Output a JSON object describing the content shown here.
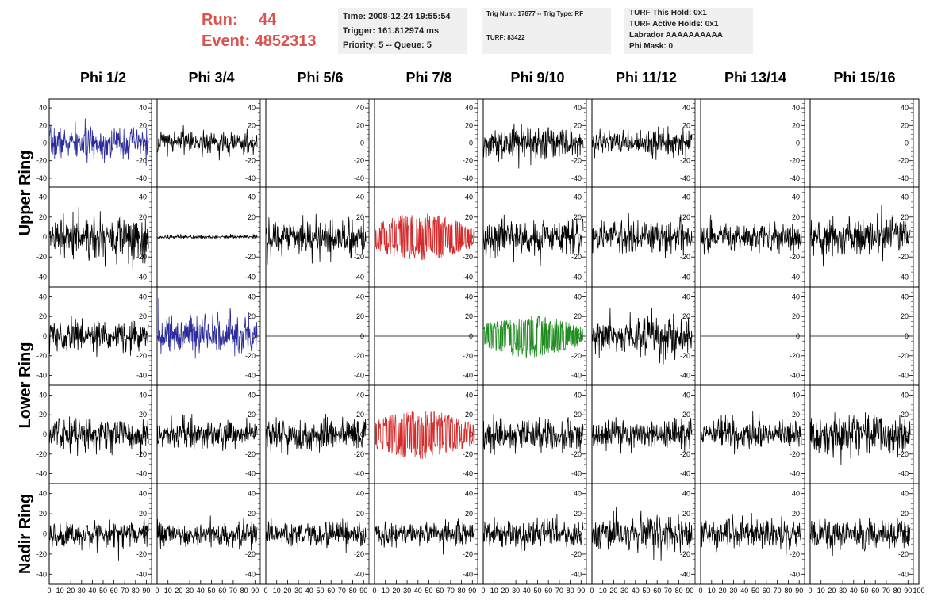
{
  "header": {
    "run_label": "Run:",
    "run_value": "44",
    "event_label": "Event:",
    "event_value": "4852313",
    "time_line": "Time: 2008-12-24 19:55:54",
    "trigger_line": "Trigger: 161.812974 ms",
    "priority_line": "Priority: 5 -- Queue: 5",
    "trig_num_line": "Trig Num: 17877 -- Trig Type: RF",
    "turf_line": "TURF: 83422",
    "turf_hold_line": "TURF This Hold: 0x1",
    "turf_active_line": "TURF Active Holds: 0x1",
    "labrador_line": "Labrador AAAAAAAAAA",
    "phi_mask_line": "Phi Mask: 0"
  },
  "colors": {
    "run_text": "#d9534f",
    "info_box_bg": "#f0f0f0",
    "trace_default": "#000000",
    "trace_blue": "#2b2b9a",
    "trace_red": "#d42a2a",
    "trace_green": "#1f8c1f"
  },
  "chart_data": {
    "type": "line",
    "title": "",
    "columns": [
      "Phi 1/2",
      "Phi 3/4",
      "Phi 5/6",
      "Phi 7/8",
      "Phi 9/10",
      "Phi 11/12",
      "Phi 13/14",
      "Phi 15/16"
    ],
    "ring_labels": [
      {
        "label": "Upper Ring",
        "rows": [
          0,
          1
        ]
      },
      {
        "label": "Lower Ring",
        "rows": [
          2,
          3
        ]
      },
      {
        "label": "Nadir Ring",
        "rows": [
          4
        ]
      }
    ],
    "xlim": [
      0,
      100
    ],
    "ylim": [
      -50,
      50
    ],
    "y_ticks": [
      -40,
      -20,
      0,
      20,
      40
    ],
    "x_ticks": [
      0,
      10,
      20,
      30,
      40,
      50,
      60,
      70,
      80,
      90,
      100
    ],
    "grid": false,
    "samples_per_trace": 260,
    "panels": [
      [
        {
          "amp": 15,
          "color": "blue"
        },
        {
          "amp": 11
        },
        {
          "amp": 0
        },
        {
          "amp": 0,
          "color": "green"
        },
        {
          "amp": 15
        },
        {
          "amp": 12
        },
        {
          "amp": 0
        },
        {
          "amp": 0
        }
      ],
      [
        {
          "amp": 17
        },
        {
          "amp": 1.5
        },
        {
          "amp": 15
        },
        {
          "amp": 20,
          "color": "red"
        },
        {
          "amp": 15
        },
        {
          "amp": 13
        },
        {
          "amp": 12
        },
        {
          "amp": 16
        }
      ],
      [
        {
          "amp": 13
        },
        {
          "amp": 16,
          "color": "blue"
        },
        {
          "amp": 0
        },
        {
          "amp": 0
        },
        {
          "amp": 18,
          "color": "green"
        },
        {
          "amp": 15
        },
        {
          "amp": 0
        },
        {
          "amp": 0
        }
      ],
      [
        {
          "amp": 14
        },
        {
          "amp": 12
        },
        {
          "amp": 14
        },
        {
          "amp": 21,
          "color": "red"
        },
        {
          "amp": 14
        },
        {
          "amp": 12
        },
        {
          "amp": 12
        },
        {
          "amp": 16
        }
      ],
      [
        {
          "amp": 11
        },
        {
          "amp": 10
        },
        {
          "amp": 11
        },
        {
          "amp": 11
        },
        {
          "amp": 12
        },
        {
          "amp": 15
        },
        {
          "amp": 13
        },
        {
          "amp": 13
        }
      ]
    ]
  }
}
